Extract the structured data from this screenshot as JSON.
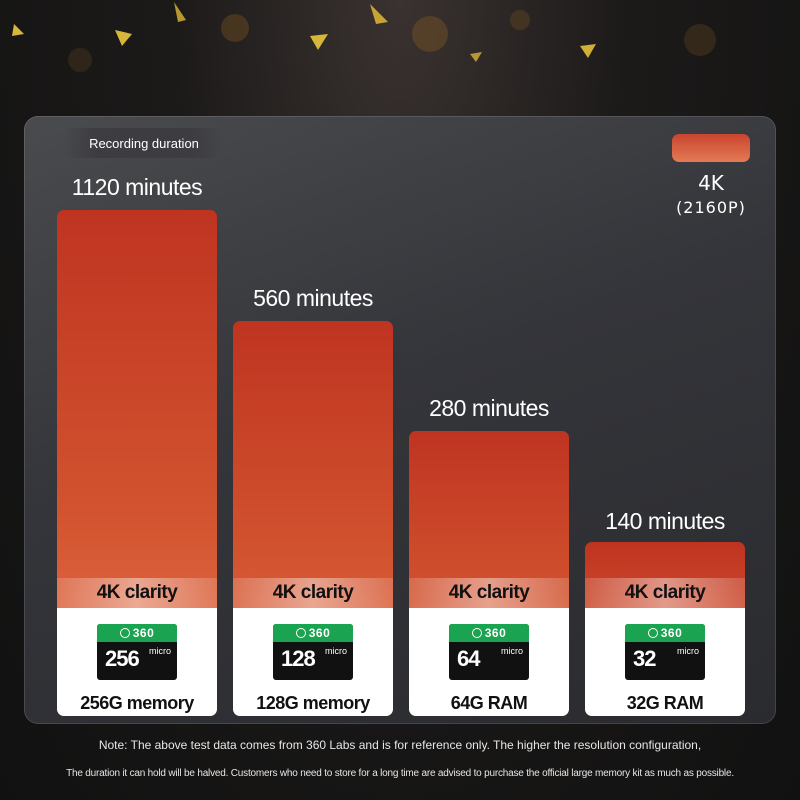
{
  "chart_data": {
    "type": "bar",
    "title": "Recording duration",
    "categories": [
      "256G memory",
      "128G memory",
      "64G RAM",
      "32G RAM"
    ],
    "card_capacities": [
      "256",
      "128",
      "64",
      "32"
    ],
    "card_brand": "360",
    "card_type": "micro",
    "series": [
      {
        "name": "4K",
        "values": [
          1120,
          560,
          280,
          140
        ],
        "value_labels": [
          "1120 minutes",
          "560 minutes",
          "280 minutes",
          "140 minutes"
        ]
      }
    ],
    "bar_caption": "4K clarity",
    "ylabel": "",
    "xlabel": "",
    "legend": {
      "label": "4K",
      "sublabel": "(2160P)",
      "placement": "top-right"
    },
    "grid": false,
    "colors": {
      "bar_top": "#bf3421",
      "bar_bottom": "#e6744c",
      "card_green": "#1aa350"
    }
  },
  "notes": {
    "line1": "Note: The above test data comes from 360 Labs and is for reference only. The higher the resolution configuration,",
    "line2": "The duration it can hold will be halved. Customers who need to store for a long time are advised to purchase the official large memory kit as much as possible."
  }
}
